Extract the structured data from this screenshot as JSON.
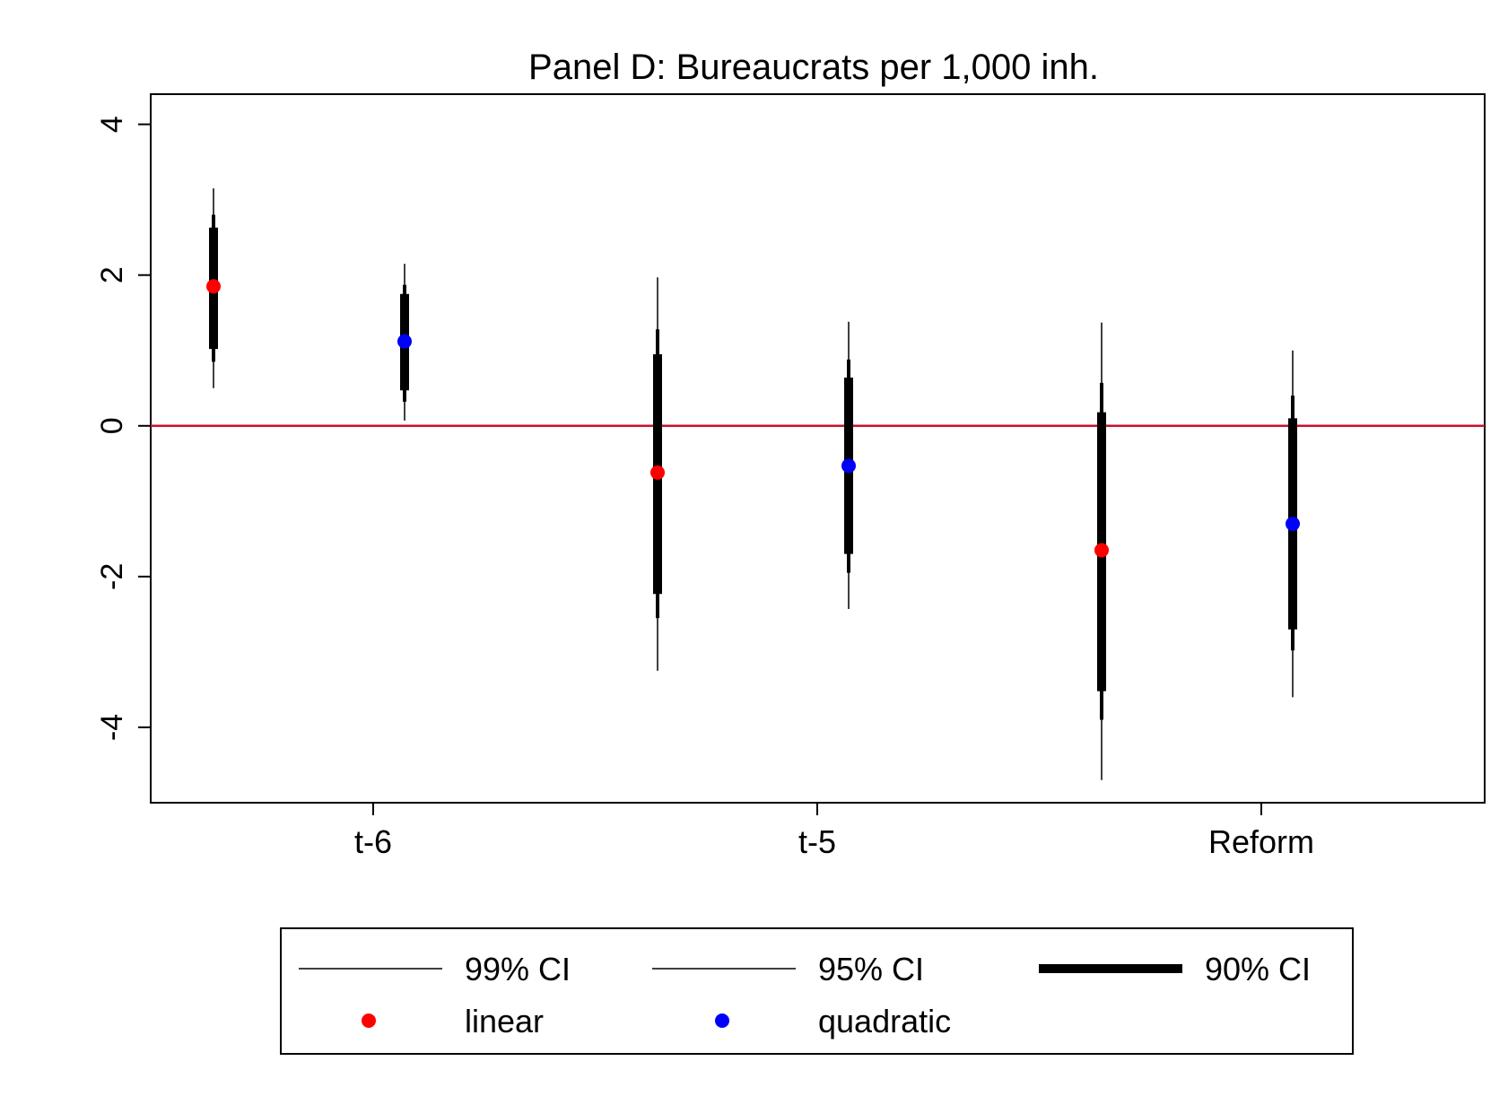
{
  "chart_data": {
    "type": "scatter",
    "title": "Panel D: Bureaucrats per 1,000 inh.",
    "xlabel": "",
    "ylabel": "",
    "ylim": [
      -5,
      4.4
    ],
    "yticks": [
      4,
      2,
      0,
      -2,
      -4
    ],
    "categories": [
      "t-6",
      "t-5",
      "Reform"
    ],
    "reference_line": {
      "y": 0,
      "color": "#c8102e"
    },
    "series": [
      {
        "name": "linear",
        "color": "#ff0000",
        "points": [
          {
            "x": "t-6",
            "estimate": 1.85,
            "ci90": [
              1.02,
              2.63
            ],
            "ci95": [
              0.85,
              2.8
            ],
            "ci99": [
              0.5,
              3.15
            ]
          },
          {
            "x": "t-5",
            "estimate": -0.62,
            "ci90": [
              -2.23,
              0.95
            ],
            "ci95": [
              -2.55,
              1.28
            ],
            "ci99": [
              -3.25,
              1.97
            ]
          },
          {
            "x": "Reform",
            "estimate": -1.65,
            "ci90": [
              -3.52,
              0.18
            ],
            "ci95": [
              -3.9,
              0.57
            ],
            "ci99": [
              -4.7,
              1.37
            ]
          }
        ]
      },
      {
        "name": "quadratic",
        "color": "#0000ff",
        "points": [
          {
            "x": "t-6",
            "estimate": 1.12,
            "ci90": [
              0.47,
              1.75
            ],
            "ci95": [
              0.32,
              1.87
            ],
            "ci99": [
              0.07,
              2.15
            ]
          },
          {
            "x": "t-5",
            "estimate": -0.53,
            "ci90": [
              -1.7,
              0.64
            ],
            "ci95": [
              -1.95,
              0.88
            ],
            "ci99": [
              -2.43,
              1.38
            ]
          },
          {
            "x": "Reform",
            "estimate": -1.3,
            "ci90": [
              -2.7,
              0.1
            ],
            "ci95": [
              -2.98,
              0.4
            ],
            "ci99": [
              -3.6,
              1.0
            ]
          }
        ]
      }
    ],
    "legend": {
      "placement": "bottom",
      "items": [
        {
          "label": "99% CI",
          "kind": "line",
          "width": "thin"
        },
        {
          "label": "95% CI",
          "kind": "line",
          "width": "thin"
        },
        {
          "label": "90% CI",
          "kind": "line",
          "width": "thick"
        },
        {
          "label": "linear",
          "kind": "marker",
          "color": "#ff0000"
        },
        {
          "label": "quadratic",
          "kind": "marker",
          "color": "#0000ff"
        }
      ]
    }
  }
}
